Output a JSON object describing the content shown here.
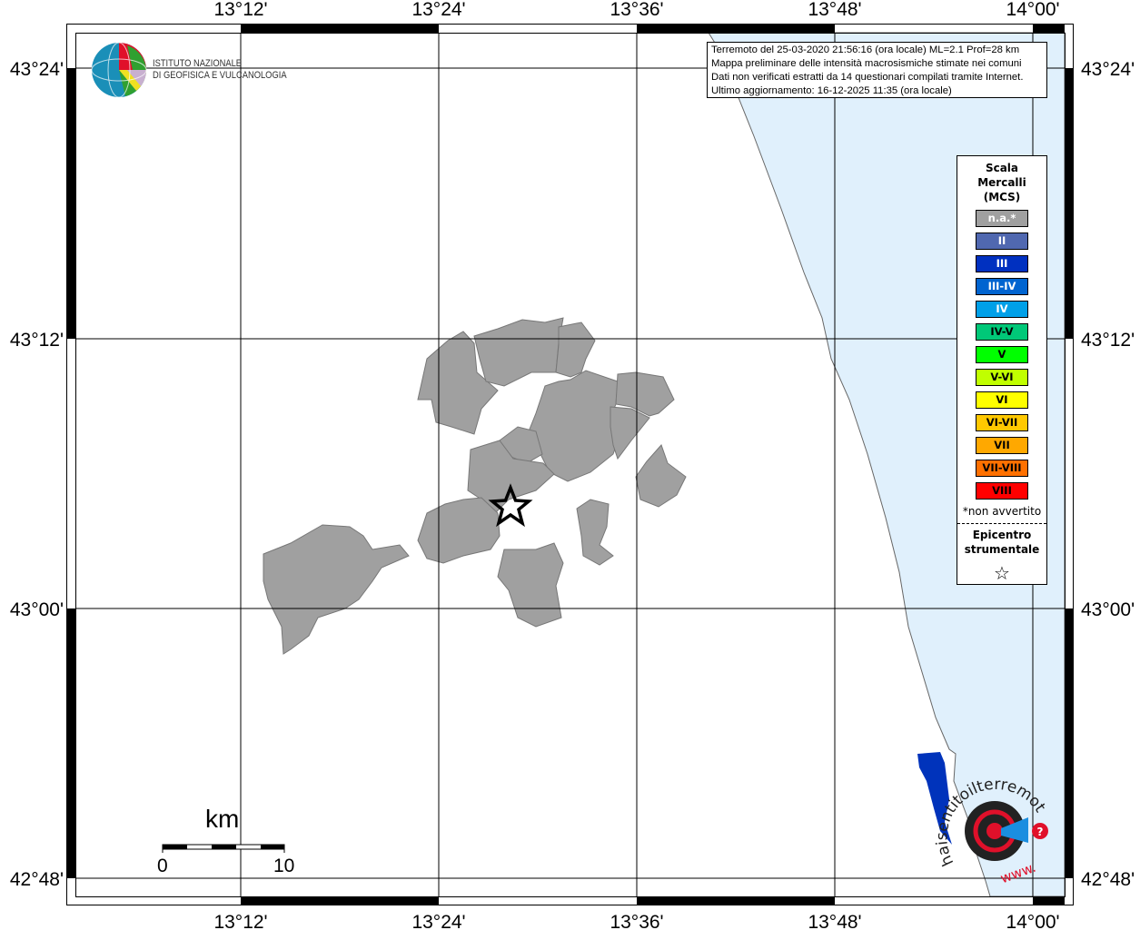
{
  "map": {
    "top_lon_labels": [
      "13°12'",
      "13°24'",
      "13°36'",
      "13°48'",
      "14°00'"
    ],
    "bottom_lon_labels": [
      "13°12'",
      "13°24'",
      "13°36'",
      "13°48'",
      "14°00'"
    ],
    "left_lat_labels": [
      "43°24'",
      "43°12'",
      "43°00'",
      "42°48'"
    ],
    "right_lat_labels": [
      "43°24'",
      "43°12'",
      "43°00'",
      "42°48'"
    ],
    "sea_color": "#e0f0fc",
    "municipality_color": "#a0a0a0"
  },
  "info_box": {
    "line1": "Terremoto del 25-03-2020 21:56:16 (ora locale) ML=2.1 Prof=28 km",
    "line2": "Mappa preliminare delle intensità macrosismiche stimate nei comuni",
    "line3": "Dati non verificati estratti da 14 questionari compilati tramite Internet.",
    "line4": "Ultimo aggiornamento: 16-12-2025 11:35 (ora locale)"
  },
  "logo": {
    "line1": "ISTITUTO NAZIONALE",
    "line2": "DI GEOFISICA E VULCANOLOGIA"
  },
  "legend": {
    "title": [
      "Scala",
      "Mercalli",
      "(MCS)"
    ],
    "items": [
      {
        "label": "n.a.*",
        "color": "#a0a0a0",
        "text_color": "#ffffff"
      },
      {
        "label": "II",
        "color": "#5068b0",
        "text_color": "#ffffff"
      },
      {
        "label": "III",
        "color": "#0030c0",
        "text_color": "#ffffff"
      },
      {
        "label": "III-IV",
        "color": "#0064d0",
        "text_color": "#ffffff"
      },
      {
        "label": "IV",
        "color": "#00a0e8",
        "text_color": "#ffffff"
      },
      {
        "label": "IV-V",
        "color": "#00c878",
        "text_color": "#000000"
      },
      {
        "label": "V",
        "color": "#00ff00",
        "text_color": "#000000"
      },
      {
        "label": "V-VI",
        "color": "#c0ff00",
        "text_color": "#000000"
      },
      {
        "label": "VI",
        "color": "#ffff00",
        "text_color": "#000000"
      },
      {
        "label": "VI-VII",
        "color": "#ffc800",
        "text_color": "#000000"
      },
      {
        "label": "VII",
        "color": "#ffa800",
        "text_color": "#000000"
      },
      {
        "label": "VII-VIII",
        "color": "#ff7000",
        "text_color": "#000000"
      },
      {
        "label": "VIII",
        "color": "#ff0000",
        "text_color": "#000000"
      }
    ],
    "note": "*non avvertito",
    "epicenter_title": [
      "Epicentro",
      "strumentale"
    ],
    "epicenter_icon": "star-outline-icon"
  },
  "scale_bar": {
    "unit": "km",
    "start": "0",
    "end": "10"
  },
  "hsit_logo": {
    "text": "haisentitoilterremoto.it",
    "prefix": "www."
  }
}
